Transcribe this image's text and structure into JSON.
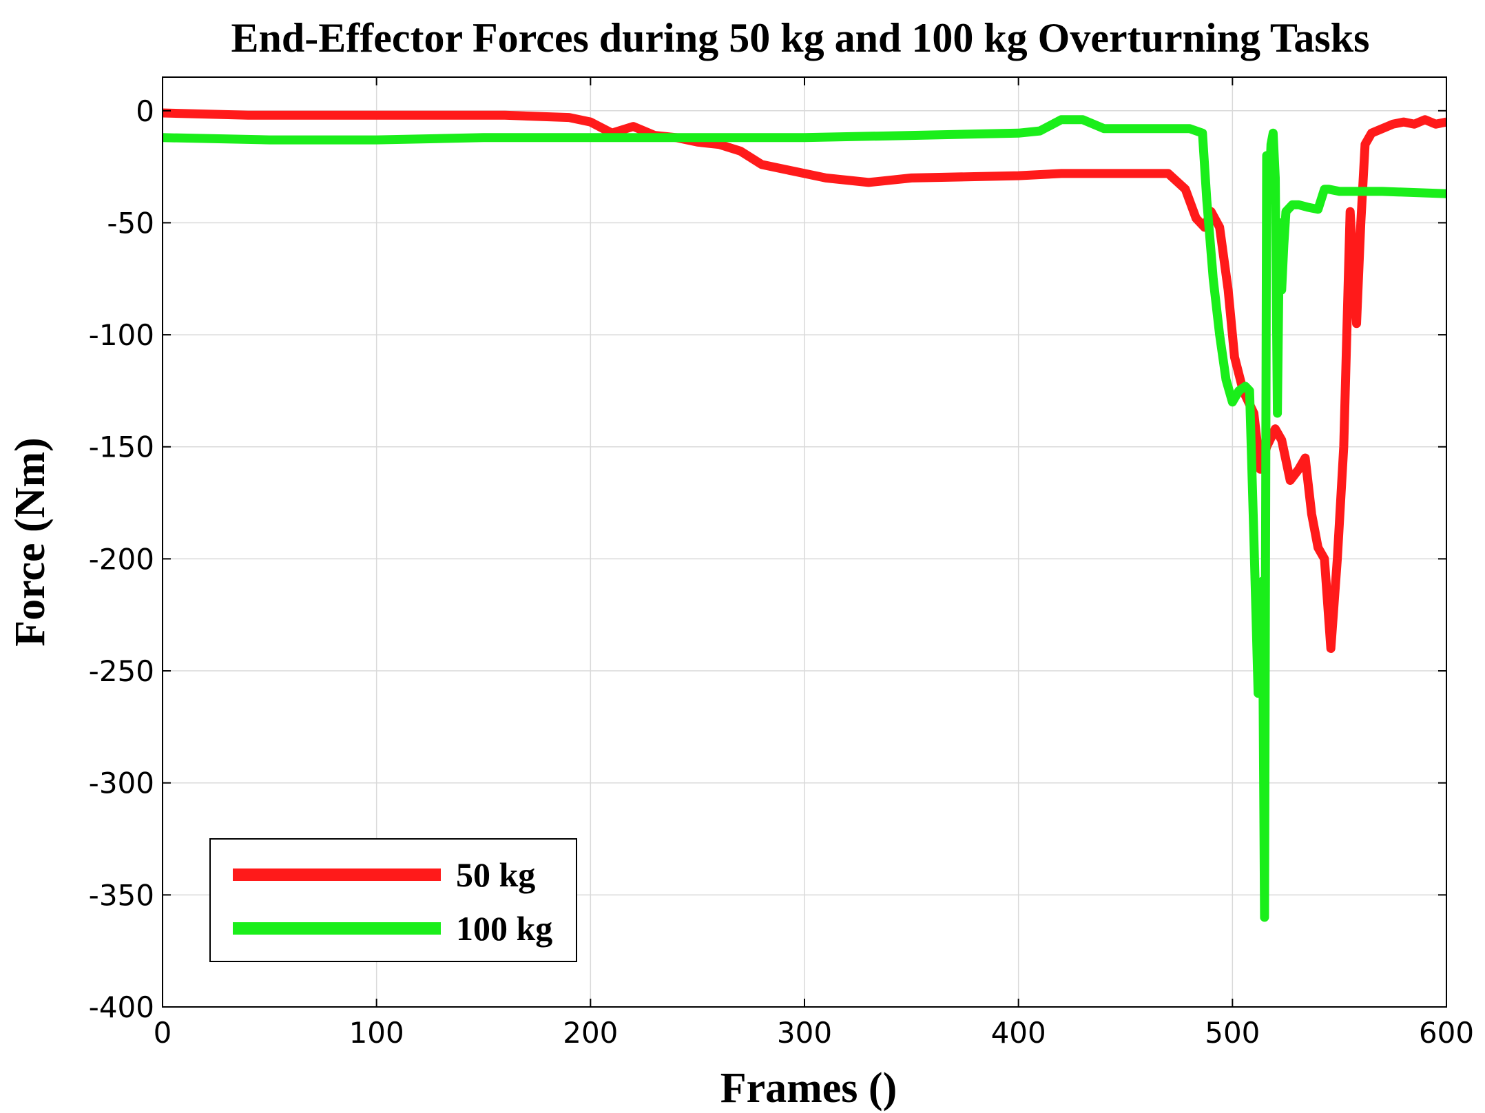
{
  "chart_data": {
    "type": "line",
    "title": "End-Effector Forces during 50 kg and 100 kg Overturning Tasks",
    "xlabel": "Frames ()",
    "ylabel": "Force (Nm)",
    "xlim": [
      0,
      600
    ],
    "ylim": [
      -400,
      15
    ],
    "xticks": [
      0,
      100,
      200,
      300,
      400,
      500,
      600
    ],
    "yticks": [
      0,
      -50,
      -100,
      -150,
      -200,
      -250,
      -300,
      -350,
      -400
    ],
    "grid": true,
    "legend_position": "bottom-left",
    "series": [
      {
        "name": "50 kg",
        "color": "#ff1a1a",
        "x": [
          0,
          40,
          80,
          120,
          160,
          190,
          200,
          210,
          220,
          230,
          240,
          250,
          260,
          270,
          280,
          290,
          300,
          310,
          320,
          330,
          350,
          400,
          420,
          440,
          470,
          478,
          483,
          487,
          490,
          494,
          498,
          501,
          505,
          510,
          513,
          516,
          520,
          523,
          527,
          531,
          534,
          537,
          540,
          543,
          546,
          549,
          552,
          555,
          558,
          560,
          562,
          565,
          570,
          575,
          580,
          585,
          590,
          595,
          600
        ],
        "y": [
          -1,
          -2,
          -2,
          -2,
          -2,
          -3,
          -5,
          -10,
          -7,
          -11,
          -12,
          -14,
          -15,
          -18,
          -24,
          -26,
          -28,
          -30,
          -31,
          -32,
          -30,
          -29,
          -28,
          -28,
          -28,
          -35,
          -48,
          -52,
          -45,
          -52,
          -80,
          -110,
          -125,
          -135,
          -160,
          -150,
          -142,
          -147,
          -165,
          -160,
          -155,
          -180,
          -195,
          -200,
          -240,
          -200,
          -150,
          -45,
          -95,
          -50,
          -15,
          -10,
          -8,
          -6,
          -5,
          -6,
          -4,
          -6,
          -5
        ]
      },
      {
        "name": "100 kg",
        "color": "#1aee1a",
        "x": [
          0,
          50,
          100,
          150,
          200,
          250,
          300,
          350,
          400,
          410,
          420,
          430,
          440,
          480,
          486,
          488,
          491,
          494,
          497,
          500,
          503,
          506,
          508,
          510,
          512,
          514,
          515,
          516,
          517,
          518,
          519,
          520,
          521,
          522,
          523,
          524,
          525,
          528,
          531,
          535,
          540,
          543,
          545,
          550,
          570,
          600
        ],
        "y": [
          -12,
          -13,
          -13,
          -12,
          -12,
          -12,
          -12,
          -11,
          -10,
          -9,
          -4,
          -4,
          -8,
          -8,
          -10,
          -40,
          -75,
          -100,
          -120,
          -130,
          -125,
          -123,
          -125,
          -190,
          -260,
          -210,
          -360,
          -20,
          -40,
          -15,
          -10,
          -30,
          -135,
          -50,
          -80,
          -60,
          -45,
          -42,
          -42,
          -43,
          -44,
          -35,
          -35,
          -36,
          -36,
          -37
        ]
      }
    ]
  }
}
